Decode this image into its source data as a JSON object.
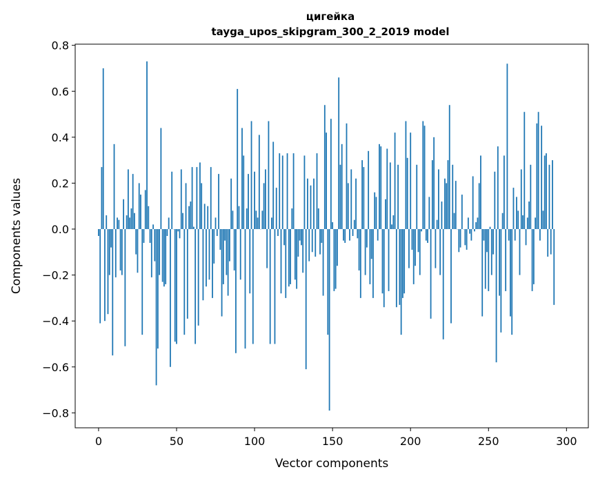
{
  "chart_data": {
    "type": "bar",
    "title": "цигейка",
    "subtitle": "tayga_upos_skipgram_300_2_2019 model",
    "xlabel": "Vector components",
    "ylabel": "Components values",
    "xlim": [
      -15,
      314
    ],
    "ylim": [
      -0.865,
      0.805
    ],
    "xticks": [
      0,
      50,
      100,
      150,
      200,
      250,
      300
    ],
    "yticks": [
      -0.8,
      -0.6,
      -0.4,
      -0.2,
      0.0,
      0.2,
      0.4,
      0.6,
      0.8
    ],
    "xtick_labels": [
      "0",
      "50",
      "100",
      "150",
      "200",
      "250",
      "300"
    ],
    "ytick_labels": [
      "−0.8",
      "−0.6",
      "−0.4",
      "−0.2",
      "0.0",
      "0.2",
      "0.4",
      "0.6",
      "0.8"
    ],
    "grid": false,
    "legend": "none",
    "bar_color": "#1f77b4",
    "values": [
      -0.03,
      -0.41,
      0.27,
      0.7,
      -0.4,
      0.06,
      -0.37,
      -0.2,
      -0.08,
      -0.55,
      0.37,
      -0.21,
      0.05,
      0.04,
      -0.18,
      -0.2,
      0.13,
      -0.51,
      0.06,
      0.26,
      0.05,
      0.09,
      0.24,
      0.07,
      -0.11,
      -0.19,
      0.2,
      0.15,
      -0.46,
      -0.06,
      0.17,
      0.73,
      0.1,
      -0.06,
      -0.21,
      0.02,
      -0.14,
      -0.68,
      -0.52,
      -0.2,
      0.44,
      -0.23,
      -0.25,
      -0.24,
      -0.03,
      0.05,
      -0.6,
      0.25,
      0.0,
      -0.49,
      -0.5,
      -0.01,
      -0.04,
      0.26,
      0.07,
      -0.46,
      0.2,
      -0.39,
      0.1,
      0.12,
      0.27,
      0.01,
      -0.5,
      0.27,
      -0.42,
      0.29,
      0.2,
      -0.31,
      0.11,
      -0.25,
      0.1,
      -0.22,
      0.27,
      -0.3,
      -0.15,
      0.05,
      -0.03,
      0.24,
      -0.09,
      -0.38,
      -0.24,
      -0.05,
      -0.2,
      -0.29,
      -0.14,
      0.22,
      0.08,
      -0.18,
      -0.54,
      0.61,
      0.1,
      -0.22,
      0.44,
      0.32,
      -0.52,
      0.09,
      0.24,
      -0.28,
      0.47,
      -0.5,
      0.25,
      0.08,
      0.05,
      0.41,
      0.0,
      0.08,
      0.2,
      0.26,
      -0.17,
      0.47,
      -0.5,
      0.05,
      0.38,
      -0.5,
      0.18,
      -0.03,
      0.33,
      -0.28,
      0.32,
      -0.07,
      -0.3,
      0.33,
      -0.25,
      -0.24,
      0.09,
      0.33,
      -0.22,
      -0.26,
      -0.12,
      -0.05,
      -0.07,
      -0.19,
      0.32,
      -0.61,
      0.22,
      -0.14,
      0.19,
      -0.1,
      0.22,
      -0.12,
      0.33,
      0.09,
      -0.11,
      -0.06,
      -0.29,
      0.54,
      0.42,
      -0.46,
      -0.79,
      0.48,
      0.03,
      -0.27,
      -0.26,
      -0.16,
      0.66,
      0.28,
      0.37,
      -0.05,
      -0.06,
      0.46,
      0.2,
      -0.05,
      0.26,
      -0.03,
      0.04,
      0.22,
      -0.04,
      -0.18,
      -0.3,
      0.3,
      0.27,
      -0.2,
      -0.08,
      0.34,
      -0.24,
      -0.13,
      -0.3,
      0.16,
      0.14,
      -0.05,
      0.37,
      0.36,
      -0.28,
      -0.34,
      0.13,
      0.35,
      -0.27,
      0.29,
      0.02,
      0.06,
      0.42,
      -0.34,
      0.28,
      -0.33,
      -0.46,
      -0.3,
      -0.28,
      0.47,
      0.31,
      -0.17,
      0.42,
      -0.09,
      -0.24,
      -0.16,
      0.28,
      -0.1,
      -0.2,
      -0.01,
      0.47,
      0.45,
      -0.05,
      -0.06,
      0.14,
      -0.39,
      0.3,
      0.4,
      -0.17,
      0.04,
      0.26,
      -0.2,
      0.12,
      -0.48,
      0.22,
      0.2,
      0.3,
      0.54,
      -0.41,
      0.28,
      0.07,
      0.21,
      0.0,
      -0.1,
      -0.08,
      0.15,
      0.0,
      -0.07,
      -0.09,
      0.05,
      -0.02,
      -0.05,
      0.23,
      -0.01,
      0.03,
      0.05,
      0.2,
      0.32,
      -0.38,
      -0.05,
      -0.26,
      -0.1,
      -0.27,
      0.01,
      -0.2,
      -0.11,
      0.25,
      -0.58,
      0.36,
      -0.29,
      -0.45,
      0.07,
      0.32,
      -0.27,
      0.72,
      -0.05,
      -0.38,
      -0.46,
      0.18,
      -0.05,
      0.14,
      0.08,
      -0.2,
      0.26,
      0.06,
      0.51,
      -0.07,
      0.05,
      0.12,
      0.28,
      -0.27,
      -0.24,
      0.05,
      0.46,
      0.51,
      -0.05,
      0.45,
      0.08,
      0.32,
      0.33,
      -0.12,
      0.28,
      -0.11,
      0.3,
      -0.33
    ]
  }
}
